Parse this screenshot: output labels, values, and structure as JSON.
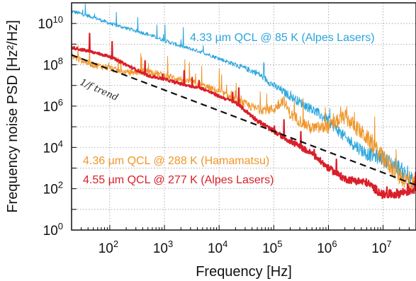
{
  "chart_data": {
    "type": "line",
    "title": "",
    "xlabel": "Frequency [Hz]",
    "ylabel": "Frequency noise PSD [Hz²/Hz]",
    "xscale": "log",
    "yscale": "log",
    "xlim": [
      20,
      40000000
    ],
    "ylim": [
      1,
      100000000000
    ],
    "grid": true,
    "x_ticks": [
      {
        "value": 100,
        "base": "10",
        "exp": "2"
      },
      {
        "value": 1000,
        "base": "10",
        "exp": "3"
      },
      {
        "value": 10000,
        "base": "10",
        "exp": "4"
      },
      {
        "value": 100000,
        "base": "10",
        "exp": "5"
      },
      {
        "value": 1000000,
        "base": "10",
        "exp": "6"
      },
      {
        "value": 10000000,
        "base": "10",
        "exp": "7"
      }
    ],
    "y_ticks": [
      {
        "value": 1,
        "base": "10",
        "exp": "0"
      },
      {
        "value": 100,
        "base": "10",
        "exp": "2"
      },
      {
        "value": 10000,
        "base": "10",
        "exp": "4"
      },
      {
        "value": 1000000,
        "base": "10",
        "exp": "6"
      },
      {
        "value": 100000000,
        "base": "10",
        "exp": "8"
      },
      {
        "value": 10000000000,
        "base": "10",
        "exp": "10"
      }
    ],
    "series": [
      {
        "name": "4.33 µm QCL @ 85 K (Alpes Lasers)",
        "color": "#2aa5dc",
        "x": [
          20,
          50,
          100,
          200,
          500,
          1000,
          2000,
          5000,
          10000,
          20000,
          50000,
          100000,
          200000,
          500000,
          1000000,
          2000000,
          5000000,
          10000000,
          20000000,
          40000000
        ],
        "y": [
          40000000000,
          20000000000,
          10000000000,
          6000000000,
          3000000000,
          1500000000,
          800000000,
          400000000,
          200000000,
          100000000,
          40000000,
          10000000,
          3000000,
          700000,
          200000,
          30000,
          5000,
          3000,
          1000,
          150
        ]
      },
      {
        "name": "4.36 µm QCL @ 288 K (Hamamatsu)",
        "color": "#f0962a",
        "x": [
          20,
          50,
          100,
          200,
          500,
          1000,
          2000,
          5000,
          10000,
          20000,
          50000,
          100000,
          150000,
          200000,
          500000,
          1000000,
          2000000,
          5000000,
          10000000,
          20000000,
          40000000
        ],
        "y": [
          250000000,
          100000000,
          70000000,
          40000000,
          50000000,
          30000000,
          20000000,
          10000000,
          5000000,
          2000000,
          700000,
          700000,
          2000000,
          400000,
          80000,
          100000,
          300000,
          30000,
          3000,
          400,
          150
        ]
      },
      {
        "name": "4.55 µm QCL @ 277 K (Alpes Lasers)",
        "color": "#d91f2a",
        "x": [
          20,
          50,
          100,
          200,
          500,
          1000,
          2000,
          5000,
          10000,
          20000,
          50000,
          100000,
          200000,
          500000,
          1000000,
          2000000,
          5000000,
          10000000,
          20000000,
          40000000
        ],
        "y": [
          700000000,
          400000000,
          250000000,
          100000000,
          30000000,
          20000000,
          12000000,
          7000000,
          3000000,
          1500000,
          200000,
          60000,
          20000,
          5000,
          1000,
          300,
          200,
          50,
          60,
          100
        ]
      },
      {
        "name": "1/f trend",
        "color": "#111111",
        "dashed": true,
        "x": [
          20,
          40000000
        ],
        "y": [
          300000000,
          150
        ]
      }
    ],
    "annotations": [
      {
        "text": "4.33 µm QCL @ 85 K (Alpes Lasers)",
        "color": "#2aa5dc"
      },
      {
        "text": "4.36 µm QCL @ 288 K (Hamamatsu)",
        "color": "#f0962a"
      },
      {
        "text": "4.55 µm QCL @ 277 K (Alpes Lasers)",
        "color": "#d91f2a"
      },
      {
        "text": "1/f trend",
        "color": "#222222"
      }
    ]
  }
}
